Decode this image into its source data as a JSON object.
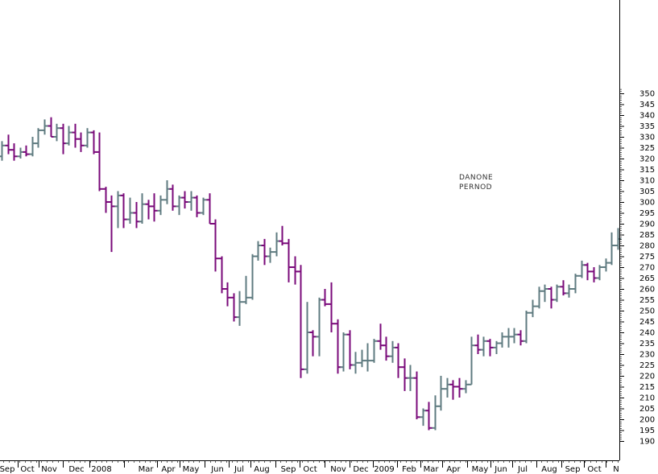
{
  "chart_data": {
    "type": "ohlc-bar",
    "title": "",
    "xlabel": "",
    "ylabel": "",
    "ylim": [
      180,
      356
    ],
    "y_ticks": [
      190,
      195,
      200,
      205,
      210,
      215,
      220,
      225,
      230,
      235,
      240,
      245,
      250,
      255,
      260,
      265,
      270,
      275,
      280,
      285,
      290,
      295,
      300,
      305,
      310,
      315,
      320,
      325,
      330,
      335,
      340,
      345,
      350
    ],
    "y_axis_side": "right",
    "grid": false,
    "x_labels": [
      "Sep",
      "Oct",
      "Nov",
      "Dec",
      "2008",
      "Mar",
      "Apr",
      "May",
      "Jun",
      "Jul",
      "Aug",
      "Sep",
      "Oct",
      "Nov",
      "Dec",
      "2009",
      "Feb",
      "Mar",
      "Apr",
      "May",
      "Jun",
      "Jul",
      "Aug",
      "Sep",
      "Oct",
      "N"
    ],
    "annotations": [
      "DANONE",
      "PERNOD"
    ],
    "colors": {
      "up": "#5f7b80",
      "down": "#7a0a7a",
      "axis": "#000000"
    },
    "series": [
      {
        "values": [
          [
            321,
            328,
            319,
            326
          ],
          [
            326,
            331,
            322,
            324
          ],
          [
            324,
            327,
            319,
            321
          ],
          [
            321,
            325,
            320,
            323
          ],
          [
            323,
            326,
            321,
            322
          ],
          [
            322,
            330,
            321,
            327
          ],
          [
            327,
            334,
            325,
            333
          ],
          [
            333,
            338,
            331,
            335
          ],
          [
            335,
            339,
            330,
            330
          ],
          [
            330,
            336,
            328,
            334
          ],
          [
            334,
            336,
            322,
            327
          ],
          [
            327,
            335,
            326,
            332
          ],
          [
            332,
            336,
            325,
            329
          ],
          [
            329,
            332,
            323,
            326
          ],
          [
            326,
            334,
            325,
            332
          ],
          [
            332,
            333,
            322,
            323
          ],
          [
            323,
            332,
            305,
            306
          ],
          [
            306,
            307,
            295,
            300
          ],
          [
            300,
            303,
            277,
            298
          ],
          [
            298,
            305,
            288,
            303
          ],
          [
            303,
            304,
            288,
            292
          ],
          [
            292,
            302,
            290,
            295
          ],
          [
            295,
            300,
            288,
            291
          ],
          [
            291,
            304,
            290,
            299
          ],
          [
            299,
            301,
            292,
            298
          ],
          [
            298,
            304,
            291,
            296
          ],
          [
            296,
            303,
            294,
            301
          ],
          [
            301,
            310,
            299,
            306
          ],
          [
            306,
            308,
            296,
            298
          ],
          [
            298,
            303,
            294,
            302
          ],
          [
            302,
            305,
            297,
            300
          ],
          [
            300,
            305,
            296,
            302
          ],
          [
            302,
            303,
            293,
            295
          ],
          [
            295,
            302,
            294,
            301
          ],
          [
            301,
            304,
            290,
            290
          ],
          [
            290,
            292,
            268,
            274
          ],
          [
            274,
            275,
            258,
            260
          ],
          [
            260,
            263,
            252,
            256
          ],
          [
            256,
            258,
            245,
            247
          ],
          [
            247,
            259,
            243,
            254
          ],
          [
            254,
            266,
            253,
            256
          ],
          [
            256,
            276,
            255,
            275
          ],
          [
            275,
            282,
            273,
            280
          ],
          [
            280,
            283,
            271,
            275
          ],
          [
            275,
            279,
            272,
            277
          ],
          [
            277,
            286,
            275,
            282
          ],
          [
            282,
            289,
            280,
            281
          ],
          [
            281,
            283,
            263,
            270
          ],
          [
            270,
            275,
            262,
            268
          ],
          [
            268,
            271,
            219,
            223
          ],
          [
            223,
            254,
            221,
            240
          ],
          [
            240,
            241,
            229,
            238
          ],
          [
            238,
            256,
            229,
            255
          ],
          [
            255,
            260,
            252,
            253
          ],
          [
            253,
            263,
            240,
            244
          ],
          [
            244,
            246,
            221,
            224
          ],
          [
            224,
            240,
            222,
            239
          ],
          [
            239,
            241,
            223,
            225
          ],
          [
            225,
            231,
            221,
            226
          ],
          [
            226,
            232,
            224,
            227
          ],
          [
            227,
            235,
            222,
            227
          ],
          [
            227,
            237,
            226,
            236
          ],
          [
            236,
            244,
            232,
            234
          ],
          [
            234,
            238,
            227,
            229
          ],
          [
            229,
            236,
            226,
            233
          ],
          [
            233,
            235,
            219,
            224
          ],
          [
            224,
            228,
            213,
            219
          ],
          [
            219,
            225,
            213,
            219
          ],
          [
            219,
            222,
            200,
            201
          ],
          [
            201,
            205,
            197,
            204
          ],
          [
            204,
            208,
            195,
            196
          ],
          [
            196,
            211,
            195,
            206
          ],
          [
            206,
            220,
            204,
            214
          ],
          [
            214,
            219,
            210,
            216
          ],
          [
            216,
            218,
            209,
            215
          ],
          [
            215,
            219,
            210,
            214
          ],
          [
            214,
            218,
            212,
            216
          ],
          [
            216,
            238,
            216,
            234
          ],
          [
            234,
            239,
            230,
            232
          ],
          [
            232,
            238,
            229,
            236
          ],
          [
            236,
            237,
            229,
            233
          ],
          [
            233,
            236,
            230,
            235
          ],
          [
            235,
            240,
            233,
            238
          ],
          [
            238,
            242,
            233,
            238
          ],
          [
            238,
            242,
            235,
            239
          ],
          [
            239,
            241,
            234,
            236
          ],
          [
            236,
            250,
            235,
            249
          ],
          [
            249,
            255,
            247,
            252
          ],
          [
            252,
            261,
            251,
            259
          ],
          [
            259,
            262,
            254,
            260
          ],
          [
            260,
            261,
            251,
            255
          ],
          [
            255,
            262,
            254,
            261
          ],
          [
            261,
            264,
            257,
            258
          ],
          [
            258,
            262,
            256,
            260
          ],
          [
            260,
            267,
            258,
            266
          ],
          [
            266,
            273,
            265,
            271
          ],
          [
            271,
            272,
            264,
            268
          ],
          [
            268,
            270,
            263,
            265
          ],
          [
            265,
            271,
            264,
            270
          ],
          [
            270,
            274,
            268,
            272
          ],
          [
            272,
            286,
            271,
            280
          ],
          [
            280,
            288,
            278,
            283
          ]
        ]
      }
    ]
  }
}
